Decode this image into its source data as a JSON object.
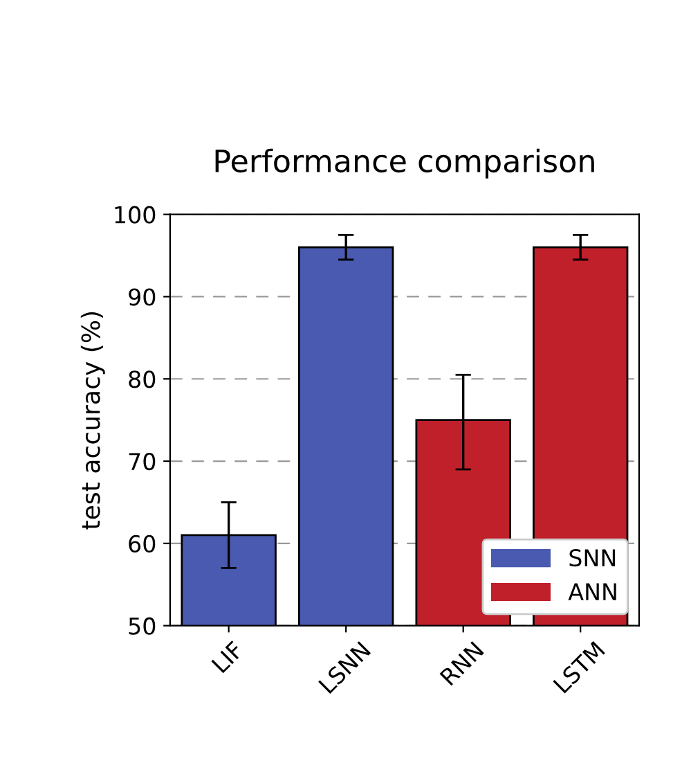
{
  "chart_data": {
    "type": "bar",
    "title": "Performance comparison",
    "ylabel": "test accuracy (%)",
    "categories": [
      "LIF",
      "LSNN",
      "RNN",
      "LSTM"
    ],
    "series": [
      {
        "name": "SNN",
        "color": "#4a5ab0",
        "values": [
          61,
          96,
          null,
          null
        ],
        "errors": [
          4,
          1.5,
          null,
          null
        ]
      },
      {
        "name": "ANN",
        "color": "#c0202a",
        "values": [
          null,
          null,
          75,
          96
        ],
        "errors": [
          null,
          null,
          [
            69,
            80.5
          ],
          1.5
        ]
      }
    ],
    "ylim": [
      50,
      100
    ],
    "yticks": [
      50,
      60,
      70,
      80,
      90,
      100
    ],
    "grid": "y",
    "legend": "bottom right"
  }
}
